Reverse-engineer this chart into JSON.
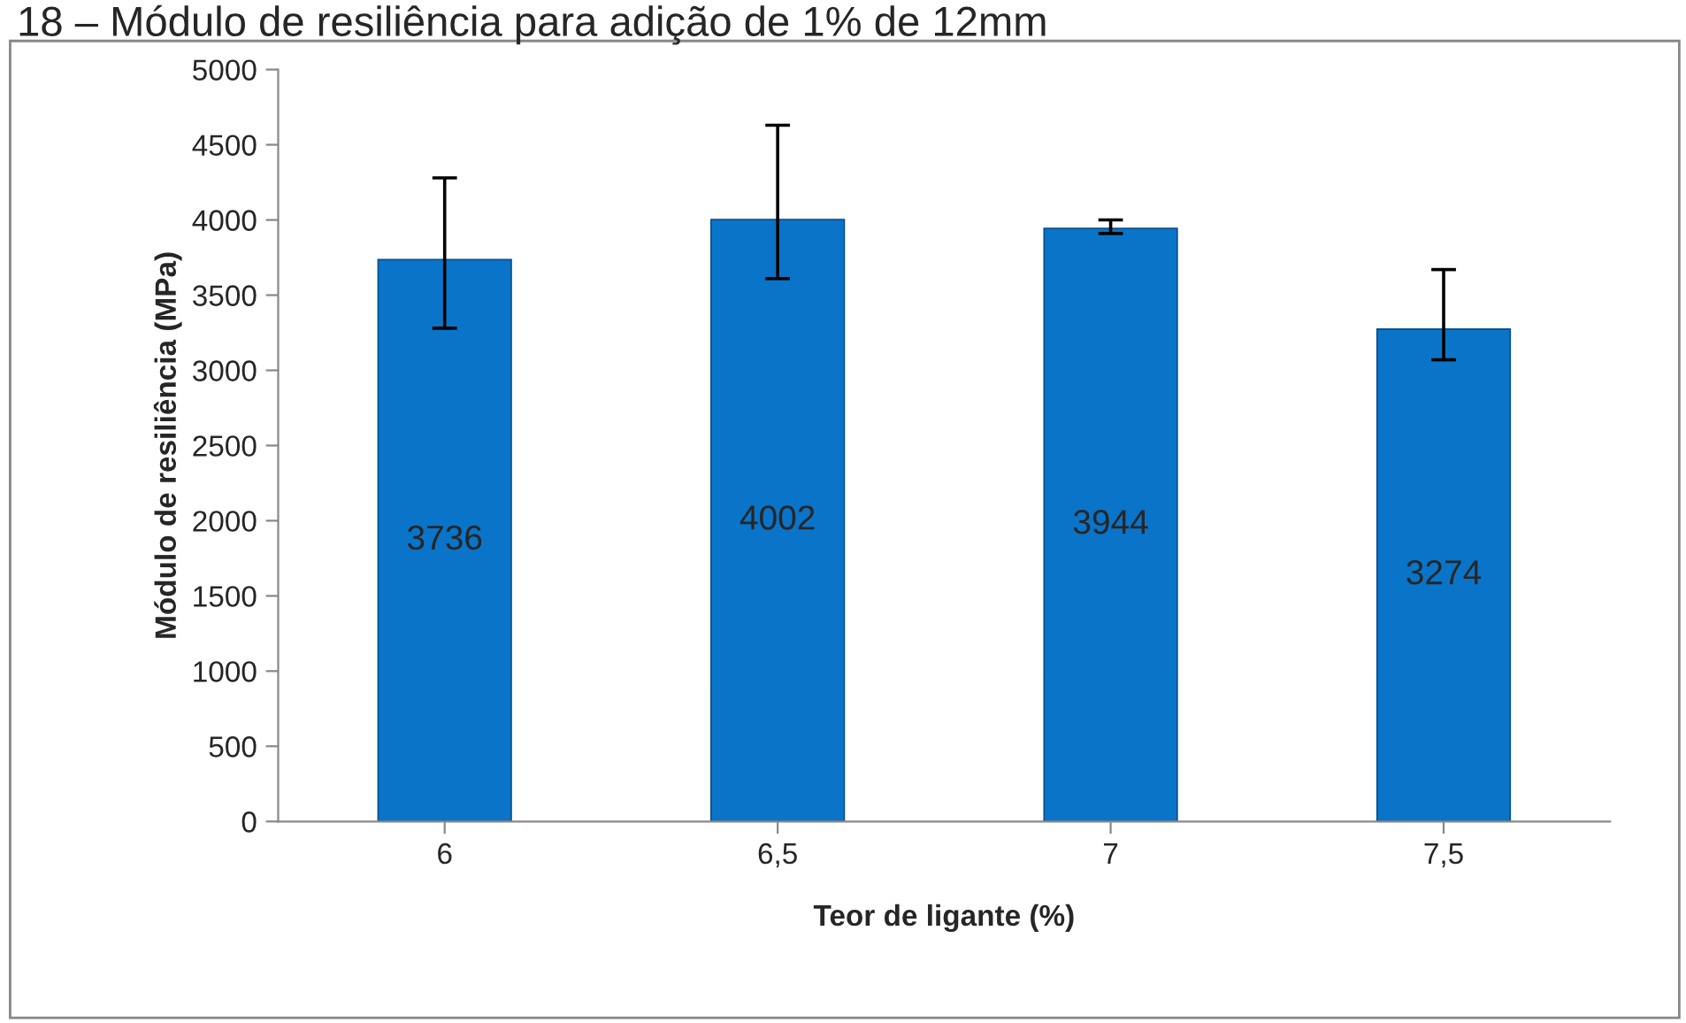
{
  "chart_data": {
    "type": "bar",
    "title": "18 – Módulo de resiliência para adição de 1% de 12mm",
    "xlabel": "Teor de ligante (%)",
    "ylabel": "Módulo de resiliência (MPa)",
    "categories": [
      "6",
      "6,5",
      "7",
      "7,5"
    ],
    "values": [
      3736,
      4002,
      3944,
      3274
    ],
    "errors": [
      [
        3280,
        4280
      ],
      [
        3610,
        4630
      ],
      [
        3910,
        4000
      ],
      [
        3070,
        3670
      ]
    ],
    "color": "#0a74c8",
    "ylim": [
      0,
      5000
    ],
    "yticks": [
      0,
      500,
      1000,
      1500,
      2000,
      2500,
      3000,
      3500,
      4000,
      4500,
      5000
    ],
    "data_labels": true,
    "grid": false,
    "legend": false
  }
}
